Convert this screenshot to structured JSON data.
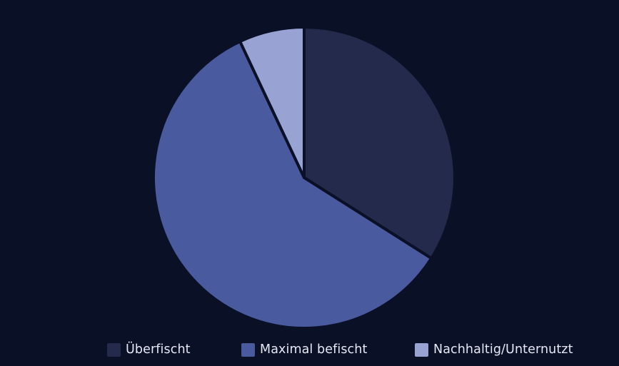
{
  "chart_data": {
    "type": "pie",
    "title": "",
    "slices": [
      {
        "label": "Überfischt",
        "value": 34,
        "color": "#232a4c"
      },
      {
        "label": "Maximal befischt",
        "value": 59,
        "color": "#4a5a9f"
      },
      {
        "label": "Nachhaltig/Unternutzt",
        "value": 7,
        "color": "#98a3d3"
      }
    ],
    "start_angle_deg": 0,
    "direction": "clockwise",
    "legend_position": "bottom"
  },
  "colors": {
    "background": "#0a1026",
    "separator": "#0a1026",
    "legend_text": "#e6e9f5"
  }
}
